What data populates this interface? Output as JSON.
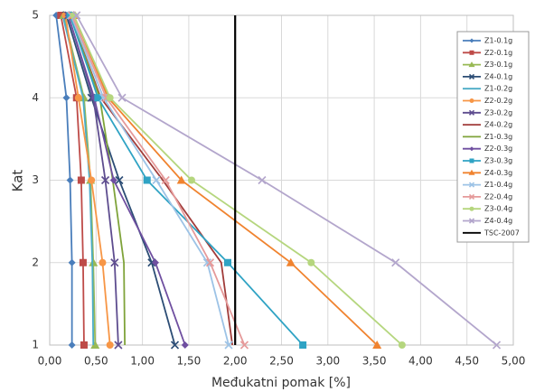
{
  "chart_data": {
    "type": "line",
    "x_label": "Međukatni pomak [%]",
    "y_label": "Kat",
    "xlim": [
      0,
      5
    ],
    "ylim": [
      1,
      5
    ],
    "xticks": [
      {
        "value": 0,
        "label": "0,00"
      },
      {
        "value": 0.5,
        "label": "0,50"
      },
      {
        "value": 1,
        "label": "1,00"
      },
      {
        "value": 1.5,
        "label": "1,50"
      },
      {
        "value": 2,
        "label": "2,00"
      },
      {
        "value": 2.5,
        "label": "2,50"
      },
      {
        "value": 3,
        "label": "3,00"
      },
      {
        "value": 3.5,
        "label": "3,50"
      },
      {
        "value": 4,
        "label": "4,00"
      },
      {
        "value": 4.5,
        "label": "4,50"
      },
      {
        "value": 5,
        "label": "5,00"
      }
    ],
    "yticks": [
      1,
      2,
      3,
      4,
      5
    ],
    "grid": true,
    "series": [
      {
        "name": "Z1-0.1g",
        "color": "#4a7ebb",
        "marker": "diamond",
        "y": [
          1,
          2,
          3,
          4,
          5
        ],
        "x": [
          0.24,
          0.24,
          0.22,
          0.18,
          0.07
        ]
      },
      {
        "name": "Z2-0.1g",
        "color": "#be4b48",
        "marker": "square",
        "y": [
          1,
          2,
          3,
          4,
          5
        ],
        "x": [
          0.37,
          0.36,
          0.34,
          0.29,
          0.12
        ]
      },
      {
        "name": "Z3-0.1g",
        "color": "#98b954",
        "marker": "triangle",
        "y": [
          1,
          2,
          3,
          4,
          5
        ],
        "x": [
          0.49,
          0.47,
          0.44,
          0.37,
          0.15
        ]
      },
      {
        "name": "Z4-0.1g",
        "color": "#2c4d75",
        "marker": "x",
        "y": [
          1,
          2,
          3,
          4,
          5
        ],
        "x": [
          1.35,
          1.1,
          0.75,
          0.45,
          0.18
        ]
      },
      {
        "name": "Z1-0.2g",
        "color": "#4bacc6",
        "marker": "none",
        "y": [
          1,
          2,
          3,
          4,
          5
        ],
        "x": [
          0.47,
          0.46,
          0.43,
          0.36,
          0.14
        ]
      },
      {
        "name": "Z2-0.2g",
        "color": "#f79646",
        "marker": "circle",
        "y": [
          1,
          2,
          3,
          4,
          5
        ],
        "x": [
          0.65,
          0.57,
          0.45,
          0.31,
          0.17
        ]
      },
      {
        "name": "Z3-0.2g",
        "color": "#5e4d8f",
        "marker": "x",
        "y": [
          1,
          2,
          3,
          4,
          5
        ],
        "x": [
          0.74,
          0.7,
          0.6,
          0.47,
          0.2
        ]
      },
      {
        "name": "Z4-0.2g",
        "color": "#a13c3a",
        "marker": "none",
        "y": [
          1,
          2,
          3,
          4,
          5
        ],
        "x": [
          1.97,
          1.85,
          1.22,
          0.55,
          0.22
        ]
      },
      {
        "name": "Z1-0.3g",
        "color": "#7fa33a",
        "marker": "none",
        "y": [
          1,
          2,
          3,
          4,
          5
        ],
        "x": [
          0.81,
          0.8,
          0.68,
          0.54,
          0.22
        ]
      },
      {
        "name": "Z2-0.3g",
        "color": "#6f4fa0",
        "marker": "diamond",
        "y": [
          1,
          2,
          3,
          4,
          5
        ],
        "x": [
          1.46,
          1.14,
          0.69,
          0.48,
          0.2
        ]
      },
      {
        "name": "Z3-0.3g",
        "color": "#2fa3c4",
        "marker": "square",
        "y": [
          1,
          2,
          3,
          4,
          5
        ],
        "x": [
          2.73,
          1.92,
          1.05,
          0.52,
          0.22
        ]
      },
      {
        "name": "Z4-0.3g",
        "color": "#f0832f",
        "marker": "triangle",
        "y": [
          1,
          2,
          3,
          4,
          5
        ],
        "x": [
          3.53,
          2.6,
          1.42,
          0.63,
          0.26
        ]
      },
      {
        "name": "Z1-0.4g",
        "color": "#9dc3e6",
        "marker": "x",
        "y": [
          1,
          2,
          3,
          4,
          5
        ],
        "x": [
          1.93,
          1.7,
          1.15,
          0.58,
          0.23
        ]
      },
      {
        "name": "Z2-0.4g",
        "color": "#e59a9a",
        "marker": "x",
        "y": [
          1,
          2,
          3,
          4,
          5
        ],
        "x": [
          2.1,
          1.73,
          1.25,
          0.61,
          0.24
        ]
      },
      {
        "name": "Z3-0.4g",
        "color": "#b5d67e",
        "marker": "circle",
        "y": [
          1,
          2,
          3,
          4,
          5
        ],
        "x": [
          3.8,
          2.82,
          1.53,
          0.65,
          0.26
        ]
      },
      {
        "name": "Z4-0.4g",
        "color": "#b3a6cc",
        "marker": "x",
        "y": [
          1,
          2,
          3,
          4,
          5
        ],
        "x": [
          4.82,
          3.73,
          2.29,
          0.78,
          0.29
        ]
      },
      {
        "name": "TSC-2007",
        "color": "#000000",
        "marker": "none",
        "y": [
          1,
          5
        ],
        "x": [
          2,
          2
        ]
      }
    ]
  }
}
